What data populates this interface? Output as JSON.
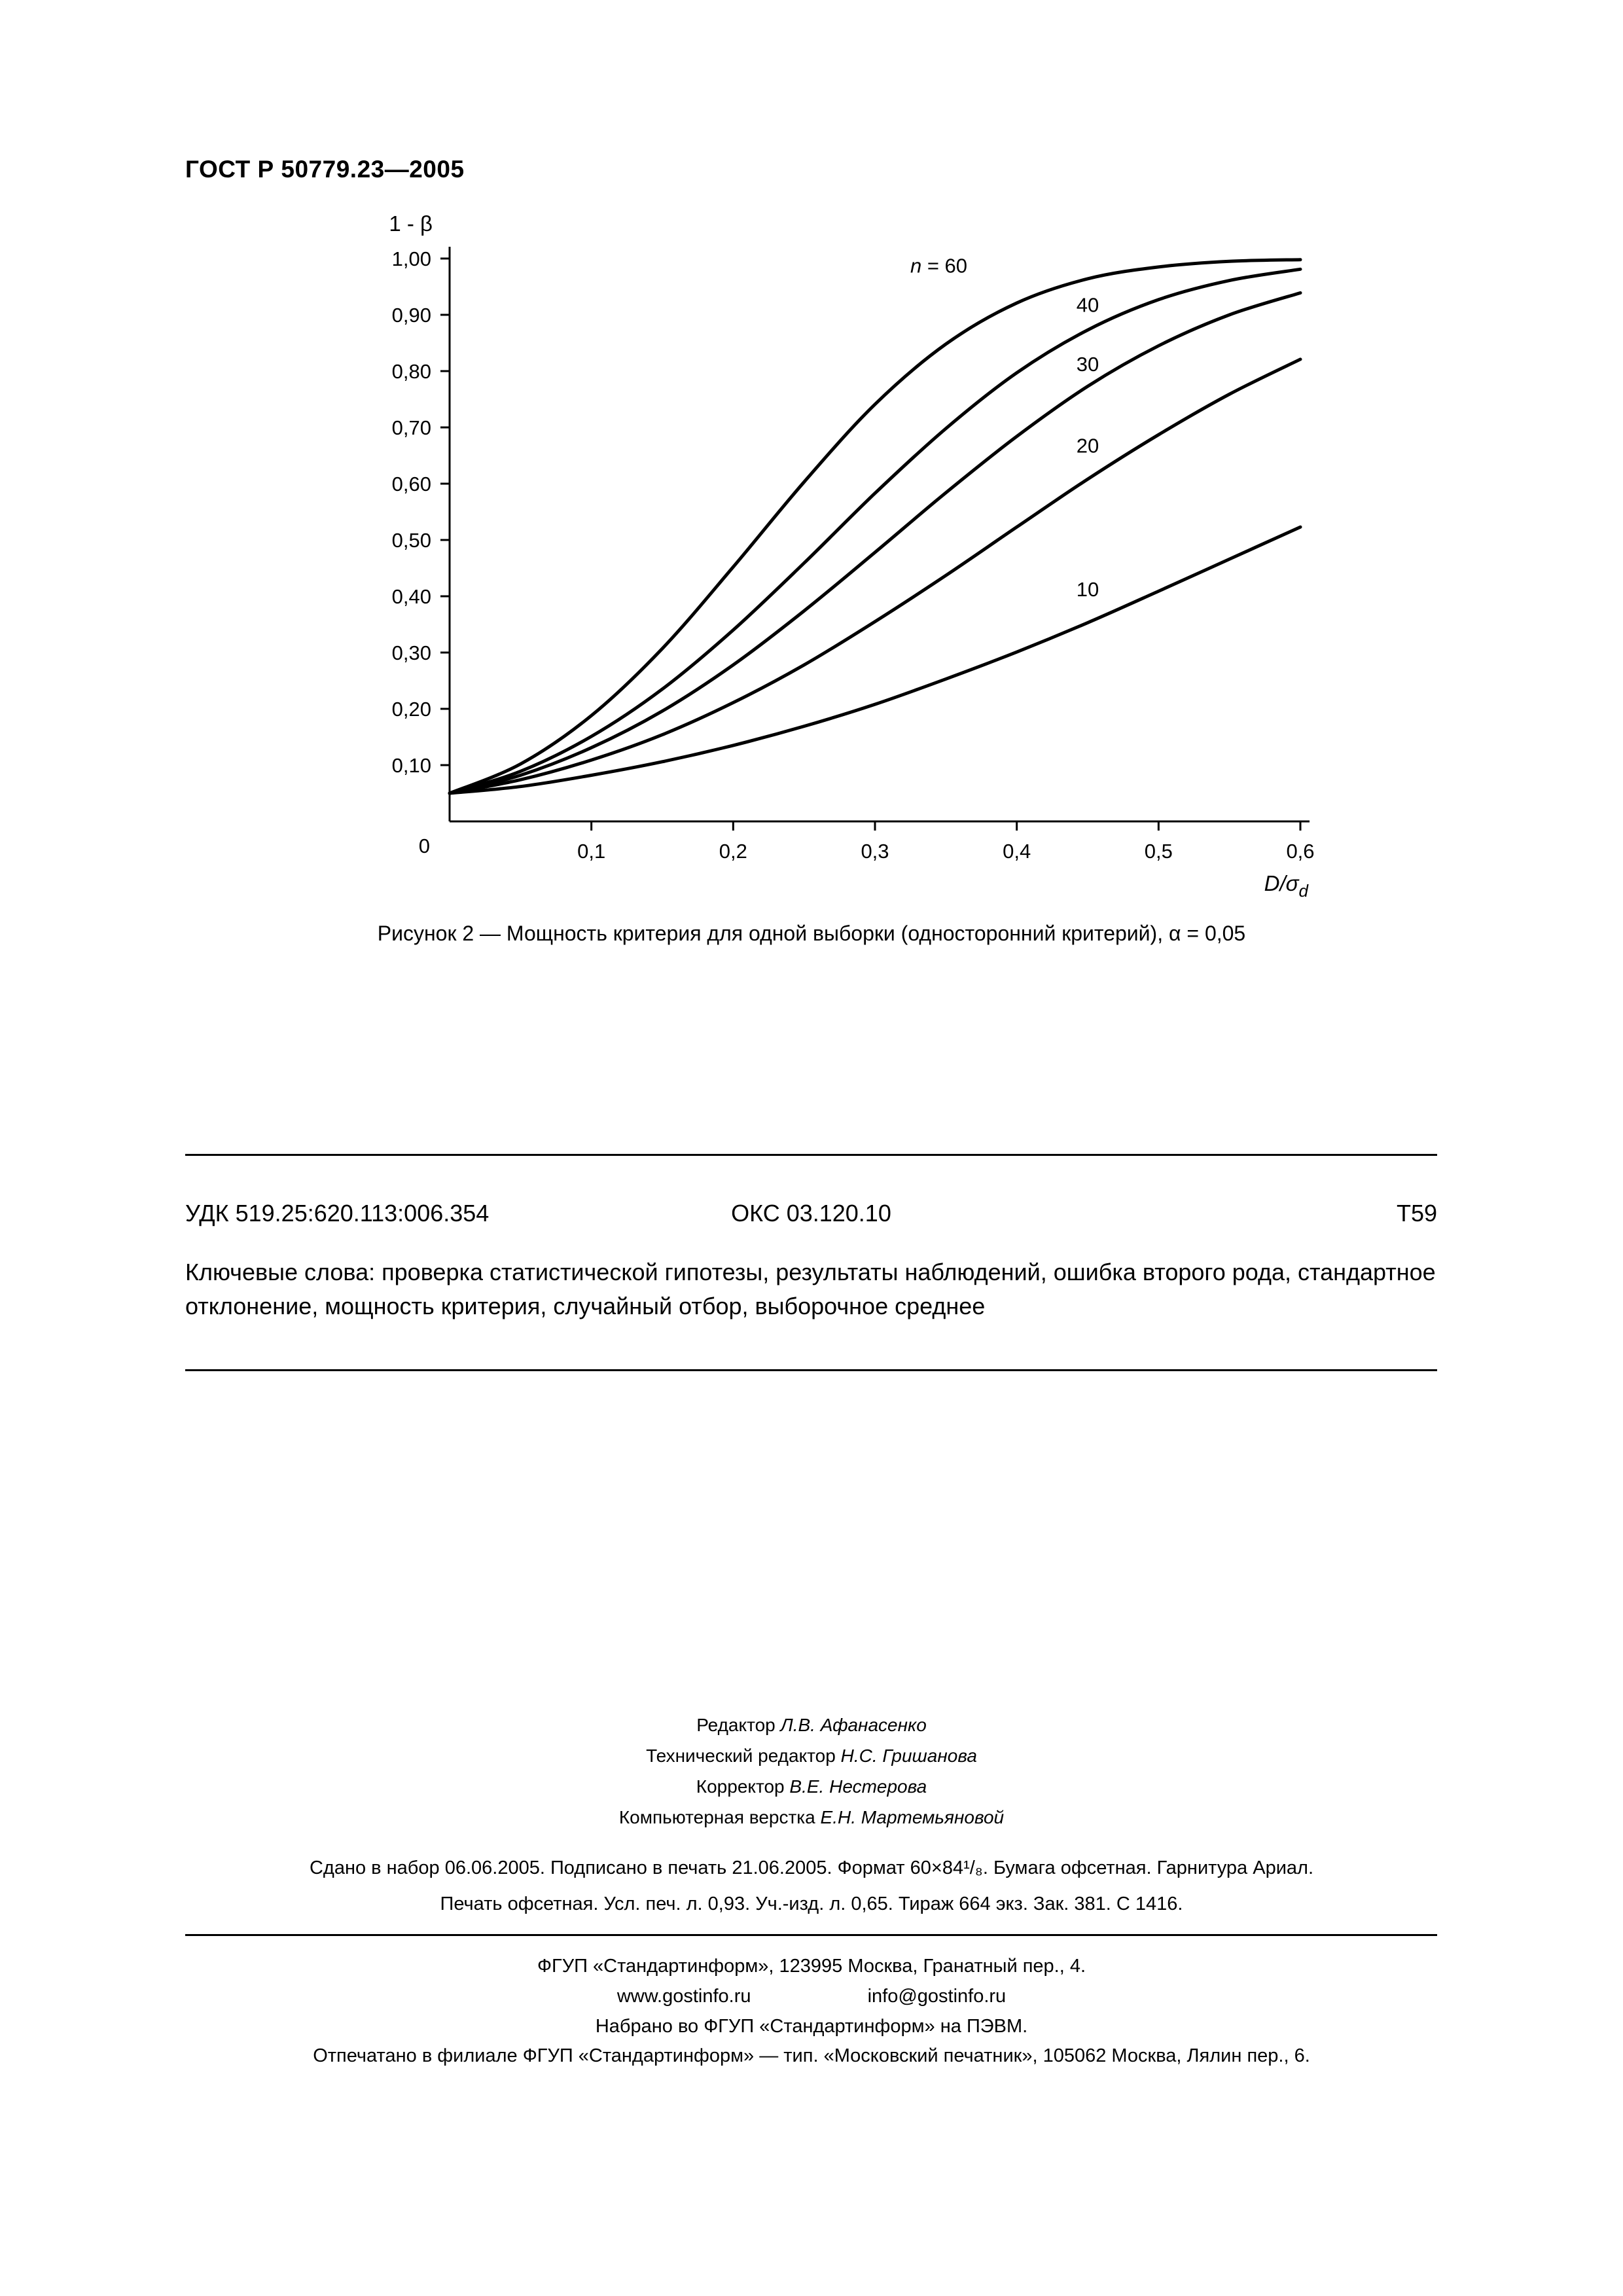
{
  "header": {
    "doc_number": "ГОСТ Р 50779.23—2005"
  },
  "chart_data": {
    "type": "line",
    "title": "Мощность критерия для одной выборки (односторонний критерий), α = 0,05",
    "y_axis_title": "1 - β",
    "x_axis_title_main": "D/σ",
    "x_axis_title_sub": "d",
    "origin_label": "0",
    "xlim": [
      0,
      0.6
    ],
    "ylim": [
      0,
      1.0
    ],
    "grid": false,
    "legend": "inline-curve-labels",
    "x": [
      0,
      0.05,
      0.1,
      0.15,
      0.2,
      0.25,
      0.3,
      0.35,
      0.4,
      0.45,
      0.5,
      0.55,
      0.6
    ],
    "xticks": [
      {
        "v": 0.1,
        "label": "0,1"
      },
      {
        "v": 0.2,
        "label": "0,2"
      },
      {
        "v": 0.3,
        "label": "0,3"
      },
      {
        "v": 0.4,
        "label": "0,4"
      },
      {
        "v": 0.5,
        "label": "0,5"
      },
      {
        "v": 0.6,
        "label": "0,6"
      }
    ],
    "yticks": [
      {
        "v": 1.0,
        "label": "1,00"
      },
      {
        "v": 0.9,
        "label": "0,90"
      },
      {
        "v": 0.8,
        "label": "0,80"
      },
      {
        "v": 0.7,
        "label": "0,70"
      },
      {
        "v": 0.6,
        "label": "0,60"
      },
      {
        "v": 0.5,
        "label": "0,50"
      },
      {
        "v": 0.4,
        "label": "0,40"
      },
      {
        "v": 0.3,
        "label": "0,30"
      },
      {
        "v": 0.2,
        "label": "0,20"
      },
      {
        "v": 0.1,
        "label": "0,10"
      }
    ],
    "series": [
      {
        "name": "n = 60",
        "n": 60,
        "label": {
          "x": 0.345,
          "y": 0.975,
          "prefix": "n",
          "rest": " = 60"
        },
        "values": [
          0.05,
          0.102,
          0.188,
          0.307,
          0.452,
          0.603,
          0.741,
          0.848,
          0.921,
          0.964,
          0.985,
          0.995,
          0.998
        ]
      },
      {
        "name": "n = 40",
        "n": 40,
        "label": {
          "x": 0.45,
          "y": 0.905,
          "text": "40"
        },
        "values": [
          0.05,
          0.089,
          0.151,
          0.235,
          0.34,
          0.459,
          0.583,
          0.698,
          0.797,
          0.873,
          0.927,
          0.961,
          0.981
        ]
      },
      {
        "name": "n = 30",
        "n": 30,
        "label": {
          "x": 0.45,
          "y": 0.8,
          "text": "30"
        },
        "values": [
          0.05,
          0.082,
          0.131,
          0.196,
          0.278,
          0.374,
          0.478,
          0.584,
          0.684,
          0.773,
          0.845,
          0.9,
          0.939
        ]
      },
      {
        "name": "n = 20",
        "n": 20,
        "label": {
          "x": 0.45,
          "y": 0.655,
          "text": "20"
        },
        "values": [
          0.05,
          0.074,
          0.109,
          0.154,
          0.211,
          0.278,
          0.355,
          0.437,
          0.523,
          0.608,
          0.687,
          0.759,
          0.821
        ]
      },
      {
        "name": "n = 10",
        "n": 10,
        "label": {
          "x": 0.45,
          "y": 0.4,
          "text": "10"
        },
        "values": [
          0.05,
          0.062,
          0.082,
          0.106,
          0.135,
          0.169,
          0.208,
          0.253,
          0.301,
          0.353,
          0.409,
          0.466,
          0.523
        ]
      }
    ]
  },
  "caption": "Рисунок 2 — Мощность критерия для одной выборки (односторонний критерий), α = 0,05",
  "classification": {
    "udk": "УДК 519.25:620.113:006.354",
    "oks": "ОКС 03.120.10",
    "code": "Т59"
  },
  "keywords": "Ключевые слова: проверка статистической гипотезы, результаты наблюдений, ошибка второго рода, стандартное отклонение, мощность критерия, случайный отбор, выборочное среднее",
  "credits": [
    {
      "role": "Редактор",
      "name": "Л.В. Афанасенко"
    },
    {
      "role": "Технический редактор",
      "name": "Н.С. Гришанова"
    },
    {
      "role": "Корректор",
      "name": "В.Е. Нестерова"
    },
    {
      "role": "Компьютерная верстка",
      "name": "Е.Н. Мартемьяновой"
    }
  ],
  "imprint": {
    "line1": "Сдано в набор 06.06.2005.  Подписано в печать 21.06.2005.  Формат 60×84¹/₈.  Бумага офсетная.  Гарнитура Ариал.",
    "line2": "Печать офсетная. Усл. печ. л. 0,93. Уч.-изд. л. 0,65.  Тираж 664 экз.   Зак. 381.   С 1416."
  },
  "publisher": {
    "line1": "ФГУП «Стандартинформ», 123995 Москва, Гранатный пер., 4.",
    "website": "www.gostinfo.ru",
    "email": "info@gostinfo.ru",
    "line3": "Набрано во ФГУП «Стандартинформ» на ПЭВМ.",
    "line4": "Отпечатано в филиале ФГУП «Стандартинформ» — тип. «Московский печатник», 105062 Москва, Лялин пер., 6."
  },
  "colors": {
    "ink": "#000000",
    "background": "#ffffff"
  }
}
